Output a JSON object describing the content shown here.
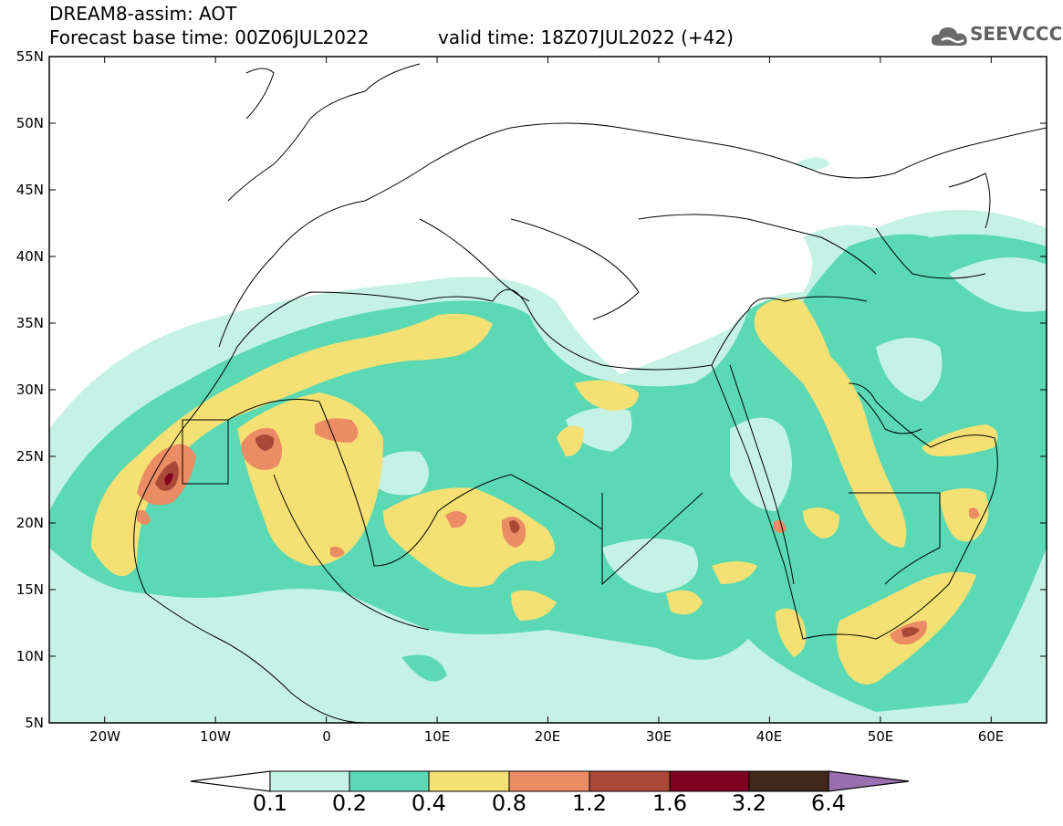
{
  "header": {
    "title": "DREAM8-assim: AOT",
    "base_time": "Forecast base time: 00Z06JUL2022",
    "valid_time": "valid time: 18Z07JUL2022 (+42)",
    "logo_text": "SEEVCCC"
  },
  "map": {
    "lon_range": [
      -25,
      65
    ],
    "lat_range": [
      5,
      55
    ],
    "lat_ticks": [
      "55N",
      "50N",
      "45N",
      "40N",
      "35N",
      "30N",
      "25N",
      "20N",
      "15N",
      "10N",
      "5N"
    ],
    "lon_ticks": [
      "20W",
      "10W",
      "0",
      "10E",
      "20E",
      "30E",
      "40E",
      "50E",
      "60E"
    ]
  },
  "colorbar": {
    "labels": [
      "0.1",
      "0.2",
      "0.4",
      "0.8",
      "1.2",
      "1.6",
      "3.2",
      "6.4"
    ],
    "colors": [
      "#ffffff",
      "#c6f2e6",
      "#5ad9b4",
      "#f5e173",
      "#ec8c64",
      "#ab4838",
      "#800020",
      "#40281a",
      "#9b70b2"
    ]
  }
}
